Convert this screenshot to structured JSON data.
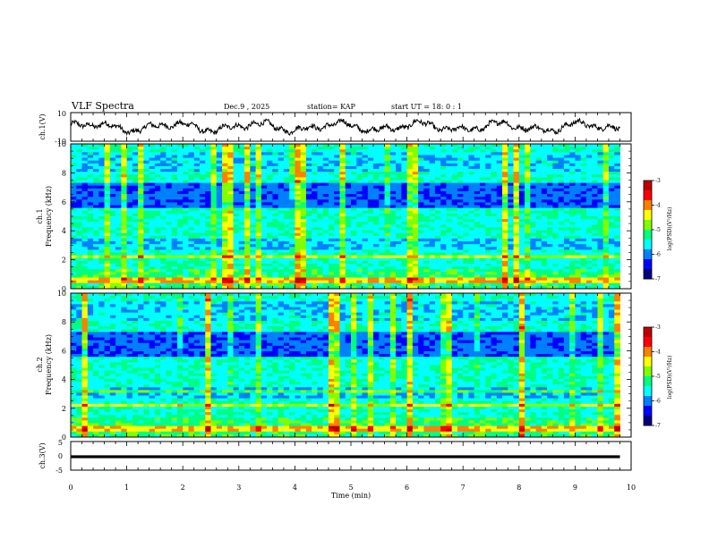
{
  "header": {
    "title": "VLF Spectra",
    "date": "Dec.9 , 2025",
    "station": "station= KAP",
    "start": "start UT = 18: 0 : 1"
  },
  "chart_data": [
    {
      "type": "line",
      "name": "ch1-waveform",
      "ylabel": "ch.1(V)",
      "ylim": [
        -10,
        10
      ],
      "ytick_labels": [
        "10",
        "-10"
      ],
      "xlim": [
        0,
        10
      ],
      "description_series": "voltage trace, roughly oscillating between -5 and 5 V"
    },
    {
      "type": "heatmap",
      "name": "ch1-spectrogram",
      "ylabel_line1": "ch.1",
      "ylabel_line2": "Frequency (kHz)",
      "ylim": [
        0,
        10
      ],
      "ytick_labels": [
        "0",
        "2",
        "4",
        "6",
        "8",
        "10"
      ],
      "xlim": [
        0,
        9.8
      ],
      "colorbar": {
        "label": "log(PSD)(V²/Hz)",
        "range": [
          -7,
          -3
        ],
        "tick_labels": [
          "-3",
          "-4",
          "-5",
          "-6",
          "-7"
        ]
      }
    },
    {
      "type": "heatmap",
      "name": "ch2-spectrogram",
      "ylabel_line1": "ch.2",
      "ylabel_line2": "Frequency (kHz)",
      "ylim": [
        0,
        10
      ],
      "ytick_labels": [
        "0",
        "2",
        "4",
        "6",
        "8",
        "10"
      ],
      "xlim": [
        0,
        9.8
      ],
      "colorbar": {
        "label": "log(PSD)(V²/Hz)",
        "range": [
          -7,
          -3
        ],
        "tick_labels": [
          "-3",
          "-4",
          "-5",
          "-6",
          "-7"
        ]
      }
    },
    {
      "type": "line",
      "name": "ch3-trace",
      "ylabel": "ch.3(V)",
      "ylim": [
        -5,
        5
      ],
      "ytick_labels": [
        "5",
        "0",
        "-5"
      ],
      "xlim": [
        0,
        10
      ],
      "xlabel": "Time (min)",
      "xtick_labels": [
        "0",
        "1",
        "2",
        "3",
        "4",
        "5",
        "6",
        "7",
        "8",
        "9",
        "10"
      ],
      "level_band": [
        -0.8,
        0.2
      ]
    }
  ],
  "colors": {
    "colormap": [
      "#000080",
      "#0000ff",
      "#0080ff",
      "#00ffff",
      "#00ff80",
      "#80ff00",
      "#ffff00",
      "#ff8000",
      "#ff0000",
      "#c00000"
    ]
  }
}
